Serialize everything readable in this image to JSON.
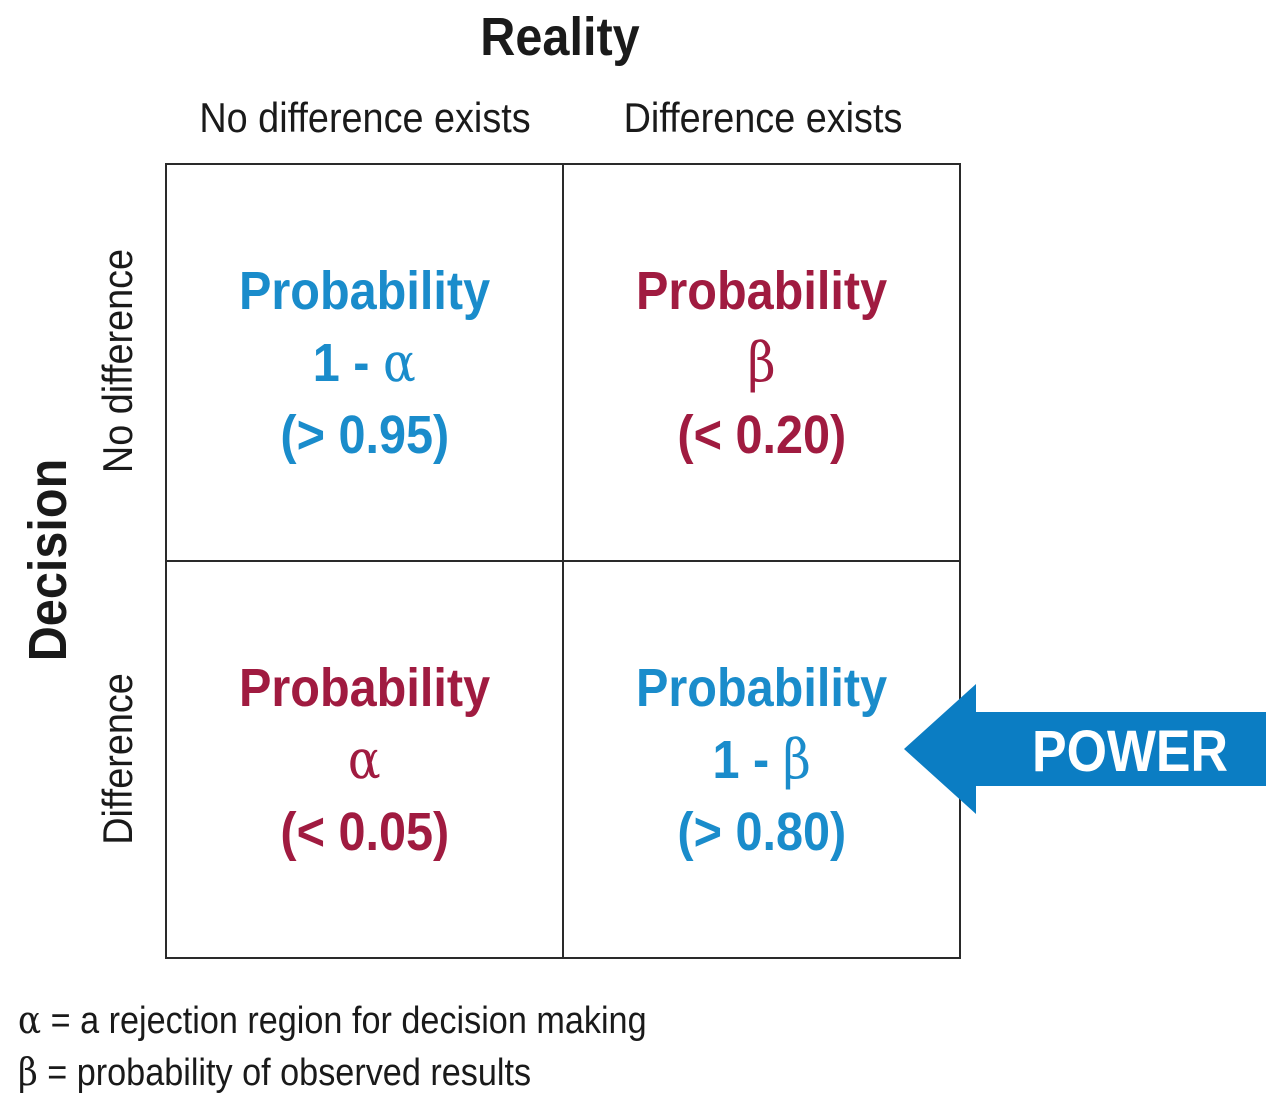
{
  "colors": {
    "blue": "#1a8ccb",
    "crimson": "#a01b40",
    "arrow": "#0b7dc3",
    "text": "#1a1a1a"
  },
  "header": {
    "title": "Reality",
    "columns": [
      "No difference exists",
      "Difference exists"
    ]
  },
  "side": {
    "title": "Decision",
    "rows": [
      "No difference",
      "Difference"
    ]
  },
  "cells": {
    "top_left": {
      "label": "Probability",
      "symbol": "1 - α",
      "value": "(> 0.95)",
      "color": "#1a8ccb"
    },
    "top_right": {
      "label": "Probability",
      "symbol": "β",
      "value": "(< 0.20)",
      "color": "#a01b40"
    },
    "bottom_left": {
      "label": "Probability",
      "symbol": "α",
      "value": "(< 0.05)",
      "color": "#a01b40"
    },
    "bottom_right": {
      "label": "Probability",
      "symbol": "1 - β",
      "value": "(> 0.80)",
      "color": "#1a8ccb"
    }
  },
  "power_arrow": {
    "label": "POWER",
    "icon": "left-arrow-icon"
  },
  "legend": [
    {
      "symbol": "α",
      "text": " = a rejection region for decision making"
    },
    {
      "symbol": "β",
      "text": " = probability of observed results"
    }
  ]
}
